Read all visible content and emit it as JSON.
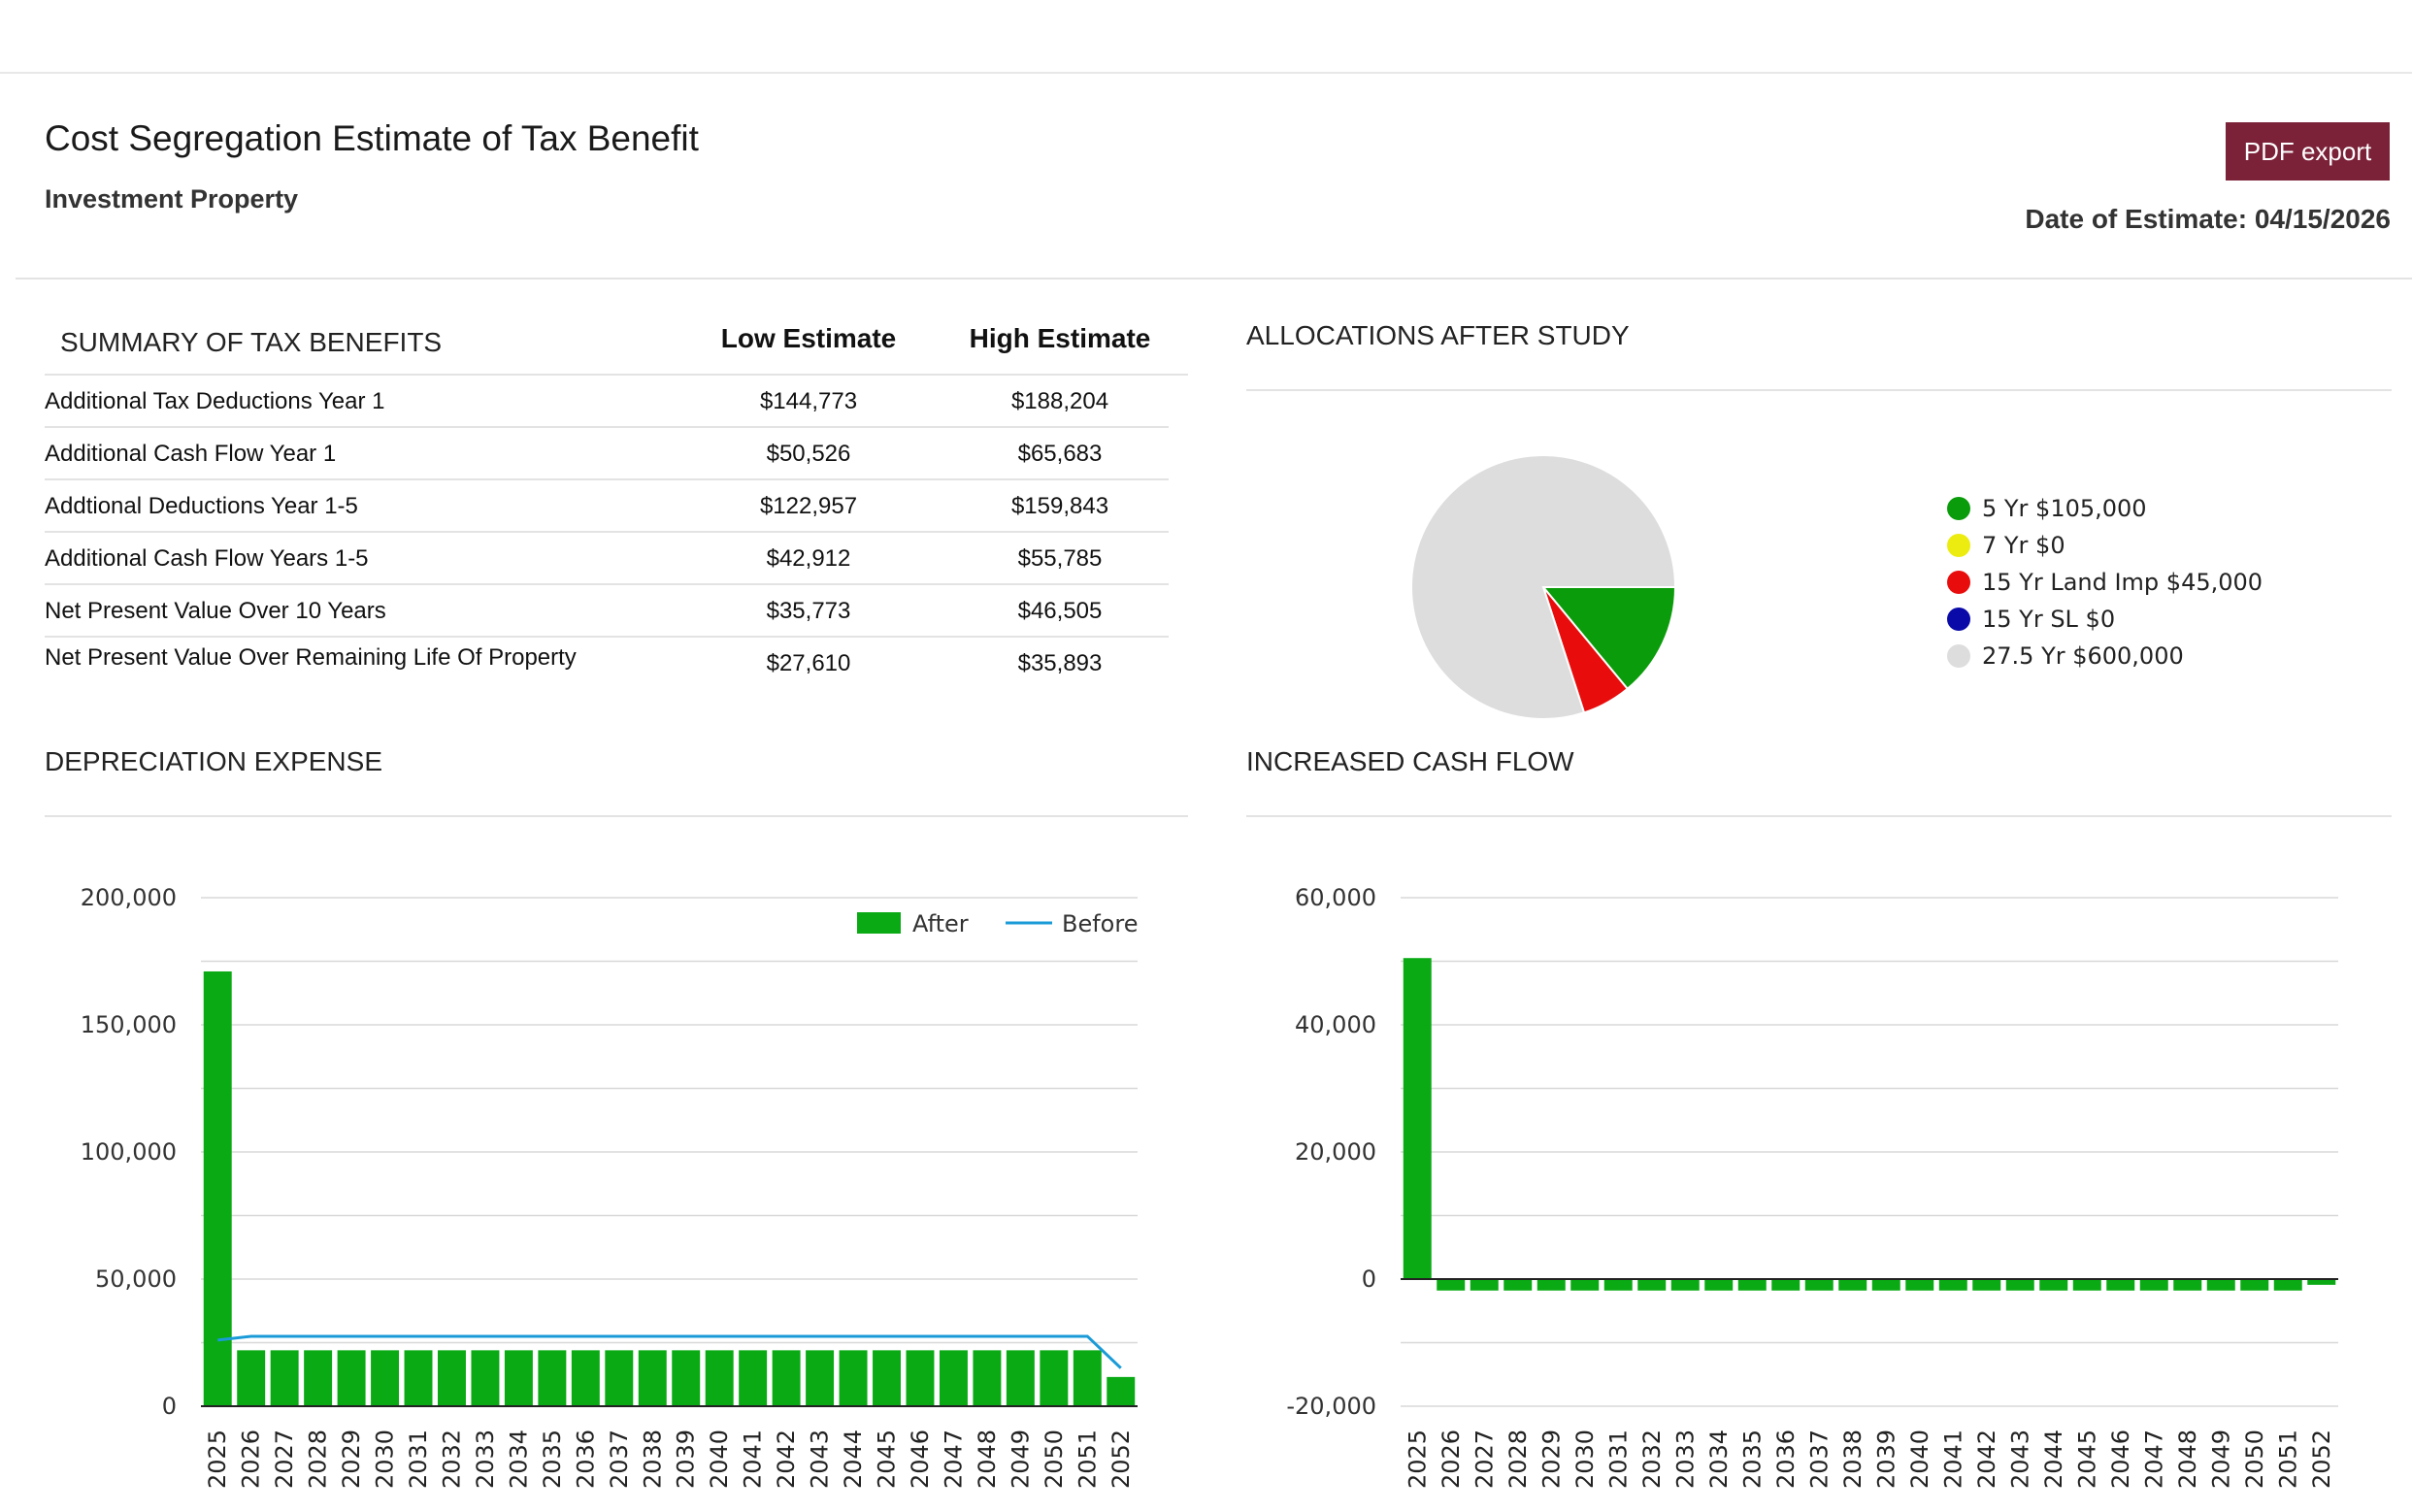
{
  "header": {
    "title": "Cost Segregation Estimate of Tax Benefit",
    "subtitle": "Investment Property",
    "pdf_button": "PDF export",
    "date": "Date of Estimate: 04/15/2026"
  },
  "summary": {
    "heading": "SUMMARY OF TAX BENEFITS",
    "low_label": "Low Estimate",
    "high_label": "High Estimate",
    "rows": [
      {
        "label": "Additional Tax Deductions Year 1",
        "low": "$144,773",
        "high": "$188,204"
      },
      {
        "label": "Additional Cash Flow Year 1",
        "low": "$50,526",
        "high": "$65,683"
      },
      {
        "label": "Addtional Deductions Year 1-5",
        "low": "$122,957",
        "high": "$159,843"
      },
      {
        "label": "Additional Cash Flow Years 1-5",
        "low": "$42,912",
        "high": "$55,785"
      },
      {
        "label": "Net Present Value Over 10 Years",
        "low": "$35,773",
        "high": "$46,505"
      },
      {
        "label": "Net Present Value Over Remaining Life Of Property",
        "low": "$27,610",
        "high": "$35,893"
      }
    ]
  },
  "allocations": {
    "heading": "ALLOCATIONS AFTER STUDY",
    "legend": [
      {
        "label": "5 Yr $105,000",
        "color": "#0a9c0a"
      },
      {
        "label": "7 Yr $0",
        "color": "#ecec10"
      },
      {
        "label": "15 Yr Land Imp $45,000",
        "color": "#e80c0c"
      },
      {
        "label": "15 Yr SL $0",
        "color": "#0a0aa8"
      },
      {
        "label": "27.5 Yr $600,000",
        "color": "#dddddd"
      }
    ]
  },
  "depreciation": {
    "heading": "DEPRECIATION EXPENSE"
  },
  "cashflow": {
    "heading": "INCREASED CASH FLOW"
  },
  "chart_data": [
    {
      "type": "pie",
      "labels": [
        "5 Yr",
        "7 Yr",
        "15 Yr Land Imp",
        "15 Yr SL",
        "27.5 Yr"
      ],
      "values": [
        105000,
        0,
        45000,
        0,
        600000
      ],
      "colors": [
        "#0a9c0a",
        "#ecec10",
        "#e80c0c",
        "#0a0aa8",
        "#dddddd"
      ]
    },
    {
      "type": "bar",
      "categories": [
        "2025",
        "2026",
        "2027",
        "2028",
        "2029",
        "2030",
        "2031",
        "2032",
        "2033",
        "2034",
        "2035",
        "2036",
        "2037",
        "2038",
        "2039",
        "2040",
        "2041",
        "2042",
        "2043",
        "2044",
        "2045",
        "2046",
        "2047",
        "2048",
        "2049",
        "2050",
        "2051",
        "2052"
      ],
      "series": [
        {
          "name": "After",
          "type": "bar",
          "color": "#0aaa14",
          "values": [
            171000,
            22000,
            22000,
            22000,
            22000,
            22000,
            22000,
            22000,
            22000,
            22000,
            22000,
            22000,
            22000,
            22000,
            22000,
            22000,
            22000,
            22000,
            22000,
            22000,
            22000,
            22000,
            22000,
            22000,
            22000,
            22000,
            22000,
            11500
          ]
        },
        {
          "name": "Before",
          "type": "line",
          "color": "#1a9bd7",
          "values": [
            26000,
            27500,
            27500,
            27500,
            27500,
            27500,
            27500,
            27500,
            27500,
            27500,
            27500,
            27500,
            27500,
            27500,
            27500,
            27500,
            27500,
            27500,
            27500,
            27500,
            27500,
            27500,
            27500,
            27500,
            27500,
            27500,
            27500,
            15000
          ]
        }
      ],
      "ylim": [
        0,
        200000
      ],
      "yticks": [
        0,
        50000,
        100000,
        150000,
        200000
      ],
      "ytick_labels": [
        "0",
        "50,000",
        "100,000",
        "150,000",
        "200,000"
      ],
      "legend": "top-right",
      "grid": true
    },
    {
      "type": "bar",
      "categories": [
        "2025",
        "2026",
        "2027",
        "2028",
        "2029",
        "2030",
        "2031",
        "2032",
        "2033",
        "2034",
        "2035",
        "2036",
        "2037",
        "2038",
        "2039",
        "2040",
        "2041",
        "2042",
        "2043",
        "2044",
        "2045",
        "2046",
        "2047",
        "2048",
        "2049",
        "2050",
        "2051",
        "2052"
      ],
      "series": [
        {
          "color": "#0aaa14",
          "values": [
            50500,
            -1800,
            -1800,
            -1800,
            -1800,
            -1800,
            -1800,
            -1800,
            -1800,
            -1800,
            -1800,
            -1800,
            -1800,
            -1800,
            -1800,
            -1800,
            -1800,
            -1800,
            -1800,
            -1800,
            -1800,
            -1800,
            -1800,
            -1800,
            -1800,
            -1800,
            -1800,
            -900
          ]
        }
      ],
      "ylim": [
        -20000,
        60000
      ],
      "yticks": [
        -20000,
        0,
        20000,
        40000,
        60000
      ],
      "ytick_labels": [
        "-20,000",
        "0",
        "20,000",
        "40,000",
        "60,000"
      ],
      "grid": true
    }
  ]
}
